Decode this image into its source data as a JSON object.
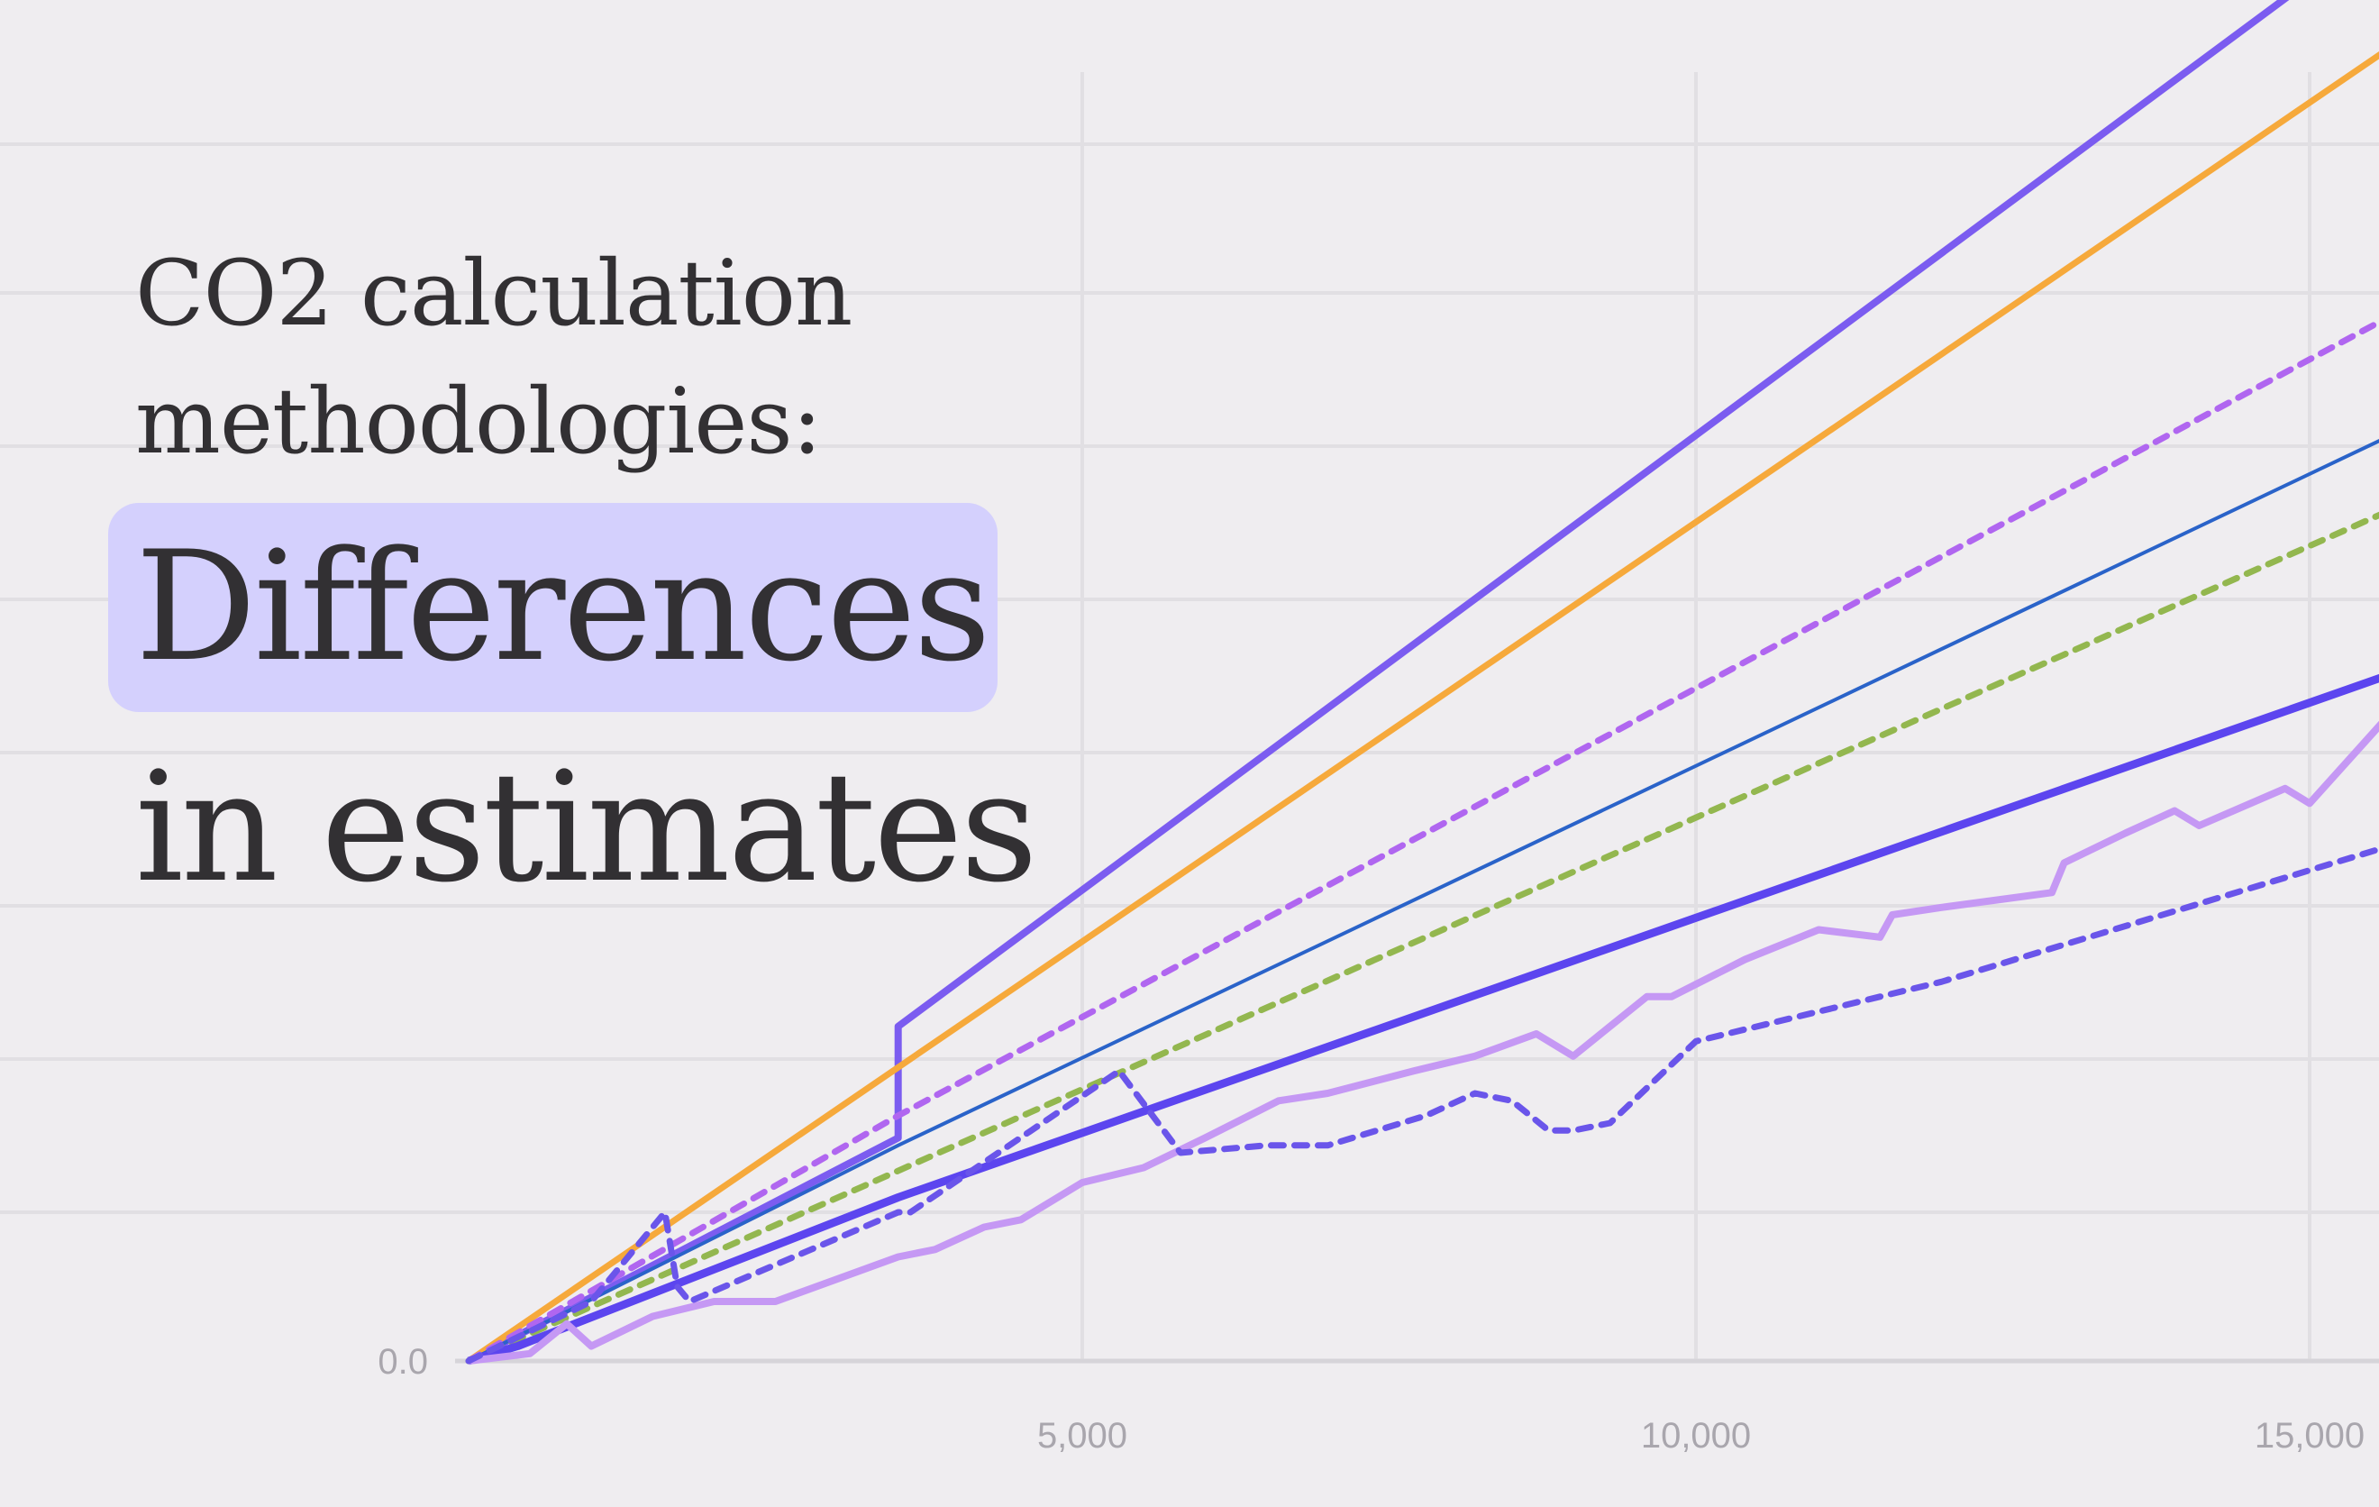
{
  "title": {
    "line1": "CO2 calculation",
    "line2": "methodologies:",
    "highlight": "Differences",
    "line4": "in estimates"
  },
  "colors": {
    "background": "#efedf0",
    "grid": "#e1dfe3",
    "highlight_bg": "#d4d0fd",
    "text": "#323033",
    "tick": "#a9a6ad"
  },
  "chart_data": {
    "type": "line",
    "title": "",
    "xlabel": "",
    "ylabel": "",
    "x_ticks": [
      "5,000",
      "10,000",
      "15,000"
    ],
    "x_tick_values": [
      5000,
      10000,
      15000
    ],
    "y_ticks": [
      "0.0"
    ],
    "y_tick_values": [
      0
    ],
    "xlim": [
      0,
      15600
    ],
    "ylim": [
      0,
      1.0
    ],
    "grid": true,
    "legend": "none",
    "series": [
      {
        "color": "#7b5cf0",
        "style": "solid",
        "width": 8,
        "points": [
          [
            0,
            0
          ],
          [
            3500,
            0.15
          ],
          [
            3500,
            0.225
          ],
          [
            15600,
            0.965
          ]
        ]
      },
      {
        "color": "#f6a93b",
        "style": "solid",
        "width": 7,
        "points": [
          [
            0,
            0
          ],
          [
            15600,
            0.88
          ]
        ]
      },
      {
        "color": "#b066f0",
        "style": "dotted",
        "width": 7,
        "points": [
          [
            0,
            0
          ],
          [
            3500,
            0.165
          ],
          [
            15600,
            0.7
          ]
        ]
      },
      {
        "color": "#2a63c9",
        "style": "solid",
        "width": 4,
        "points": [
          [
            0,
            0
          ],
          [
            3500,
            0.145
          ],
          [
            15600,
            0.62
          ]
        ]
      },
      {
        "color": "#93b74f",
        "style": "dotted",
        "width": 7,
        "points": [
          [
            0,
            0
          ],
          [
            15600,
            0.57
          ]
        ]
      },
      {
        "color": "#5c45ef",
        "style": "solid",
        "width": 9,
        "points": [
          [
            0,
            0
          ],
          [
            400,
            0.01
          ],
          [
            3500,
            0.11
          ],
          [
            15600,
            0.46
          ]
        ]
      },
      {
        "color": "#c598f4",
        "style": "solid",
        "width": 8,
        "points": [
          [
            0,
            0
          ],
          [
            500,
            0.005
          ],
          [
            800,
            0.025
          ],
          [
            1000,
            0.01
          ],
          [
            1500,
            0.03
          ],
          [
            2000,
            0.04
          ],
          [
            2500,
            0.04
          ],
          [
            3000,
            0.055
          ],
          [
            3500,
            0.07
          ],
          [
            3800,
            0.075
          ],
          [
            4200,
            0.09
          ],
          [
            4500,
            0.095
          ],
          [
            5000,
            0.12
          ],
          [
            5500,
            0.13
          ],
          [
            6000,
            0.15
          ],
          [
            6600,
            0.175
          ],
          [
            7000,
            0.18
          ],
          [
            7700,
            0.195
          ],
          [
            8200,
            0.205
          ],
          [
            8700,
            0.22
          ],
          [
            9000,
            0.205
          ],
          [
            9600,
            0.245
          ],
          [
            9800,
            0.245
          ],
          [
            10400,
            0.27
          ],
          [
            11000,
            0.29
          ],
          [
            11500,
            0.285
          ],
          [
            11600,
            0.3
          ],
          [
            12000,
            0.305
          ],
          [
            12900,
            0.315
          ],
          [
            13000,
            0.335
          ],
          [
            13500,
            0.355
          ],
          [
            13900,
            0.37
          ],
          [
            14100,
            0.36
          ],
          [
            14800,
            0.385
          ],
          [
            15000,
            0.375
          ],
          [
            15600,
            0.43
          ]
        ]
      },
      {
        "color": "#6a55ea",
        "style": "dotted",
        "width": 7,
        "points": [
          [
            0,
            0
          ],
          [
            1000,
            0.04
          ],
          [
            1600,
            0.1
          ],
          [
            1700,
            0.05
          ],
          [
            1800,
            0.04
          ],
          [
            3500,
            0.1
          ],
          [
            3600,
            0.1
          ],
          [
            5300,
            0.195
          ],
          [
            5800,
            0.14
          ],
          [
            6500,
            0.145
          ],
          [
            7000,
            0.145
          ],
          [
            7800,
            0.165
          ],
          [
            8200,
            0.18
          ],
          [
            8500,
            0.175
          ],
          [
            8800,
            0.155
          ],
          [
            9000,
            0.155
          ],
          [
            9300,
            0.16
          ],
          [
            10000,
            0.215
          ],
          [
            12000,
            0.255
          ],
          [
            15600,
            0.345
          ]
        ]
      }
    ]
  }
}
